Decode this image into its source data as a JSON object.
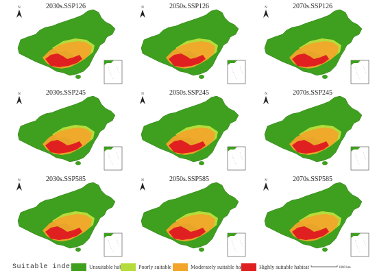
{
  "panels": [
    {
      "title": "2030s.SSP126"
    },
    {
      "title": "2050s.SSP126"
    },
    {
      "title": "2070s.SSP126"
    },
    {
      "title": "2030s.SSP245"
    },
    {
      "title": "2050s.SSP245"
    },
    {
      "title": "2070s.SSP245"
    },
    {
      "title": "2030s.SSP585"
    },
    {
      "title": "2050s.SSP585"
    },
    {
      "title": "2070s.SSP585"
    }
  ],
  "legend": {
    "title": "Suitable index",
    "items": [
      {
        "label": "Unsuitable habitat",
        "color": "#3f9f1f"
      },
      {
        "label": "Poorly suitable habitat",
        "color": "#b5dc3a"
      },
      {
        "label": "Moderately suitable habitat",
        "color": "#f2a52a"
      },
      {
        "label": "Highly suitable habitat",
        "color": "#e02020"
      }
    ],
    "scale_label": "1000 km"
  },
  "north_arrow_label": "N"
}
